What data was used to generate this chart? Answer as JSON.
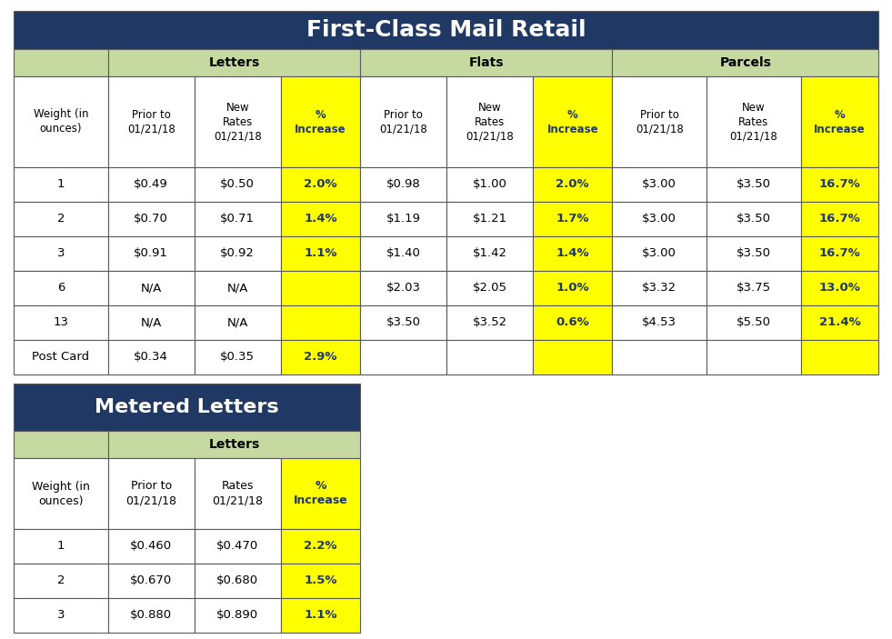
{
  "title1": "First-Class Mail Retail",
  "title2": "Metered Letters",
  "title_bg": "#1F3864",
  "title_color": "#FFFFFF",
  "header_bg": "#C5D9A0",
  "yellow_bg": "#FFFF00",
  "yellow_text": "#1F3864",
  "white_bg": "#FFFFFF",
  "border_color": "#5A5A5A",
  "table1_sub_headers": [
    "Weight (in\nounces)",
    "Prior to\n01/21/18",
    "New\nRates\n01/21/18",
    "%\nIncrease",
    "Prior to\n01/21/18",
    "New\nRates\n01/21/18",
    "%\nIncrease",
    "Prior to\n01/21/18",
    "New\nRates\n01/21/18",
    "%\nIncrease"
  ],
  "table1_rows": [
    [
      "1",
      "$0.49",
      "$0.50",
      "2.0%",
      "$0.98",
      "$1.00",
      "2.0%",
      "$3.00",
      "$3.50",
      "16.7%"
    ],
    [
      "2",
      "$0.70",
      "$0.71",
      "1.4%",
      "$1.19",
      "$1.21",
      "1.7%",
      "$3.00",
      "$3.50",
      "16.7%"
    ],
    [
      "3",
      "$0.91",
      "$0.92",
      "1.1%",
      "$1.40",
      "$1.42",
      "1.4%",
      "$3.00",
      "$3.50",
      "16.7%"
    ],
    [
      "6",
      "N/A",
      "N/A",
      "",
      "$2.03",
      "$2.05",
      "1.0%",
      "$3.32",
      "$3.75",
      "13.0%"
    ],
    [
      "13",
      "N/A",
      "N/A",
      "",
      "$3.50",
      "$3.52",
      "0.6%",
      "$4.53",
      "$5.50",
      "21.4%"
    ],
    [
      "Post Card",
      "$0.34",
      "$0.35",
      "2.9%",
      "",
      "",
      "",
      "",
      "",
      ""
    ]
  ],
  "table2_sub_headers": [
    "Weight (in\nounces)",
    "Prior to\n01/21/18",
    "Rates\n01/21/18",
    "%\nIncrease"
  ],
  "table2_rows": [
    [
      "1",
      "$0.460",
      "$0.470",
      "2.2%"
    ],
    [
      "2",
      "$0.670",
      "$0.680",
      "1.5%"
    ],
    [
      "3",
      "$0.880",
      "$0.890",
      "1.1%"
    ]
  ]
}
